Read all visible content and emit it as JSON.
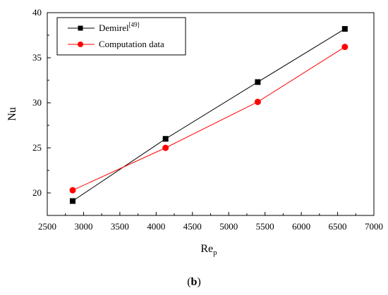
{
  "chart_data": {
    "type": "line",
    "xlabel": "Re",
    "xlabel_sub": "p",
    "ylabel": "Nu",
    "xlim": [
      2500,
      7000
    ],
    "ylim": [
      17.5,
      40
    ],
    "xticks": [
      2500,
      3000,
      3500,
      4000,
      4500,
      5000,
      5500,
      6000,
      6500,
      7000
    ],
    "yticks": [
      20,
      25,
      30,
      35,
      40
    ],
    "legend_position": "top-left",
    "grid": false,
    "series": [
      {
        "name": "Demirel",
        "name_sup": "[49]",
        "color": "#000000",
        "marker": "square",
        "x": [
          2850,
          4130,
          5400,
          6600
        ],
        "y": [
          19.1,
          26.0,
          32.3,
          38.2
        ]
      },
      {
        "name": "Computation data",
        "color": "#ff0000",
        "marker": "circle",
        "x": [
          2850,
          4130,
          5400,
          6600
        ],
        "y": [
          20.3,
          25.0,
          30.1,
          36.2
        ]
      }
    ]
  },
  "caption": {
    "open": "(",
    "letter": "b",
    "close": ")"
  }
}
